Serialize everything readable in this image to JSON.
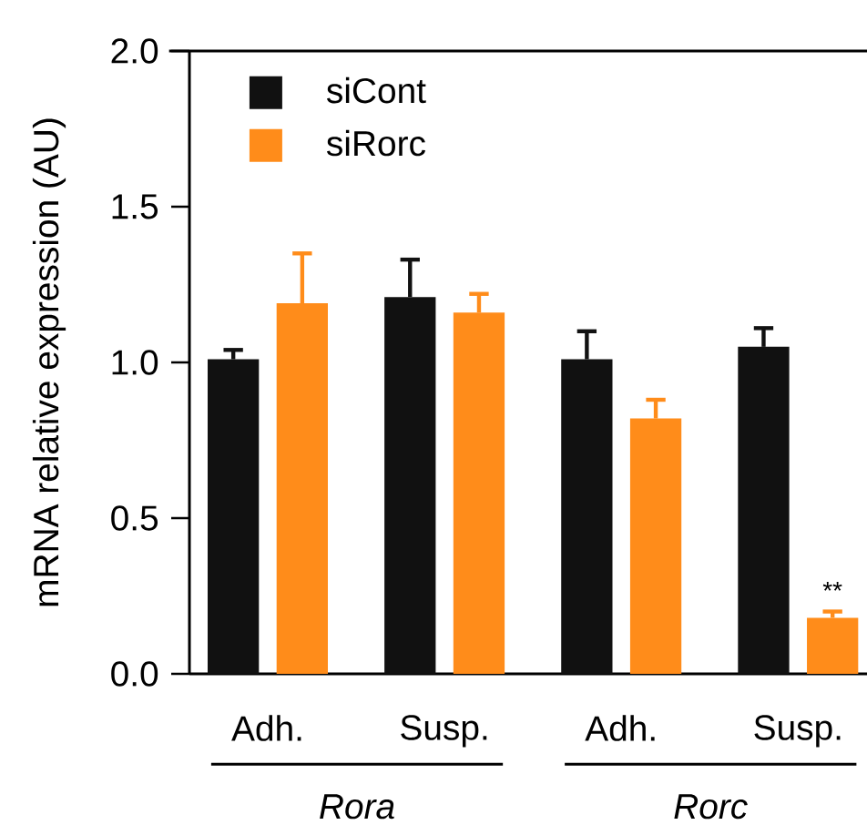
{
  "chart_data": {
    "type": "bar",
    "ylabel": "mRNA relative expression (AU)",
    "categories": [
      "Adh.",
      "Susp.",
      "Adh.",
      "Susp."
    ],
    "series": [
      {
        "name": "siCont",
        "color": "#111111",
        "values": [
          1.01,
          1.21,
          1.01,
          1.05
        ],
        "errors": [
          [
            1.01,
            1.04
          ],
          [
            1.21,
            1.33
          ],
          [
            1.01,
            1.1
          ],
          [
            1.05,
            1.11
          ]
        ]
      },
      {
        "name": "siRorc",
        "color": "#ff8c1a",
        "values": [
          1.19,
          1.16,
          0.82,
          0.18
        ],
        "errors": [
          [
            1.19,
            1.35
          ],
          [
            1.16,
            1.22
          ],
          [
            0.82,
            0.88
          ],
          [
            0.18,
            0.2
          ]
        ]
      }
    ],
    "ylim": [
      0,
      2.0
    ],
    "yticks": [
      {
        "value": 0,
        "label": "0.0"
      },
      0.5,
      {
        "value": 1,
        "label": "1.0"
      },
      1.5,
      {
        "value": 2,
        "label": "2.0"
      }
    ],
    "legend": "top left",
    "grid": false,
    "annotations": [
      "**",
      "Rora",
      "Rorc"
    ]
  }
}
